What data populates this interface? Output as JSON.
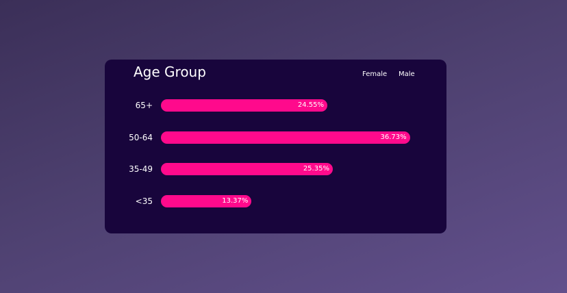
{
  "chart_data": {
    "type": "bar",
    "orientation": "horizontal",
    "title": "Age Group",
    "legend": [
      "Female",
      "Male"
    ],
    "legend_placement": "top-right",
    "categories": [
      "65+",
      "50-64",
      "35-49",
      "<35"
    ],
    "series": [
      {
        "name": "Female",
        "values": [
          24.55,
          36.73,
          25.35,
          13.37
        ],
        "labels": [
          "24.55%",
          "36.73%",
          "25.35%",
          "13.37%"
        ],
        "color": "#ff0a8c"
      }
    ],
    "xlim": [
      0,
      50
    ],
    "grid": false
  },
  "colors": {
    "card_background": "#18053c",
    "bar": "#ff0a8c",
    "text": "#ffffff"
  }
}
